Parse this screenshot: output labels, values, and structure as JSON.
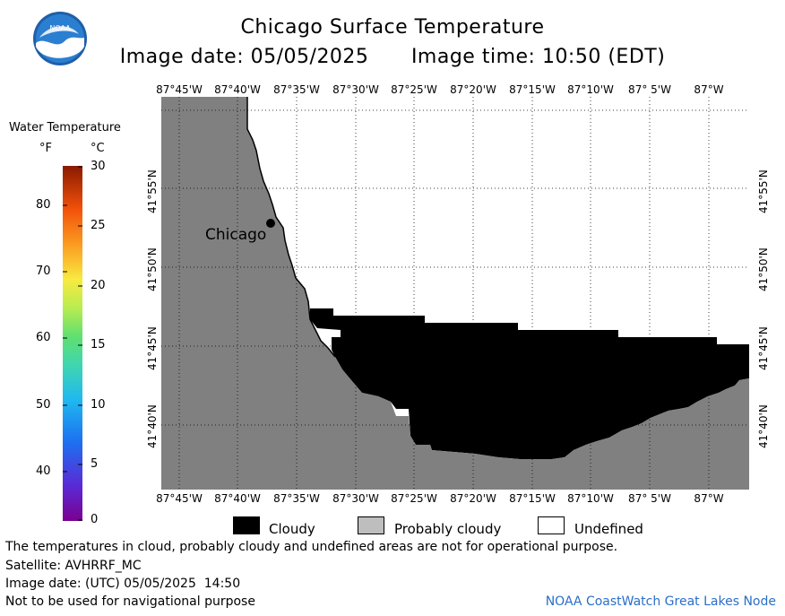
{
  "header": {
    "title": "Chicago Surface Temperature",
    "image_date": "Image date: 05/05/2025",
    "image_time": "Image time: 10:50 (EDT)",
    "logo_text": "NOAA"
  },
  "colorbar": {
    "title": "Water Temperature",
    "unit_f": "°F",
    "unit_c": "°C",
    "f_ticks": [
      "80",
      "70",
      "60",
      "50",
      "40"
    ],
    "c_ticks": [
      "30",
      "25",
      "20",
      "15",
      "10",
      "5",
      "0"
    ]
  },
  "map": {
    "lon_labels": [
      "87°45'W",
      "87°40'W",
      "87°35'W",
      "87°30'W",
      "87°25'W",
      "87°20'W",
      "87°15'W",
      "87°10'W",
      "87° 5'W",
      "87°W"
    ],
    "lat_labels": [
      "41°55'N",
      "41°50'N",
      "41°45'N",
      "41°40'N"
    ],
    "city_label": "Chicago",
    "colors": {
      "land": "#808080",
      "cloudy": "#000000",
      "probably_cloudy": "#bebebe",
      "undefined": "#ffffff"
    }
  },
  "legend": {
    "cloudy": "Cloudy",
    "probably_cloudy": "Probably cloudy",
    "undefined": "Undefined"
  },
  "footer": {
    "disclaimer": "The temperatures in cloud, probably cloudy and undefined areas are not for operational purpose.",
    "satellite": "Satellite: AVHRRF_MC",
    "utc_date": "Image date: (UTC) 05/05/2025  14:50",
    "nav_warning": "Not to be used for navigational purpose",
    "credit": "NOAA CoastWatch Great Lakes Node"
  }
}
